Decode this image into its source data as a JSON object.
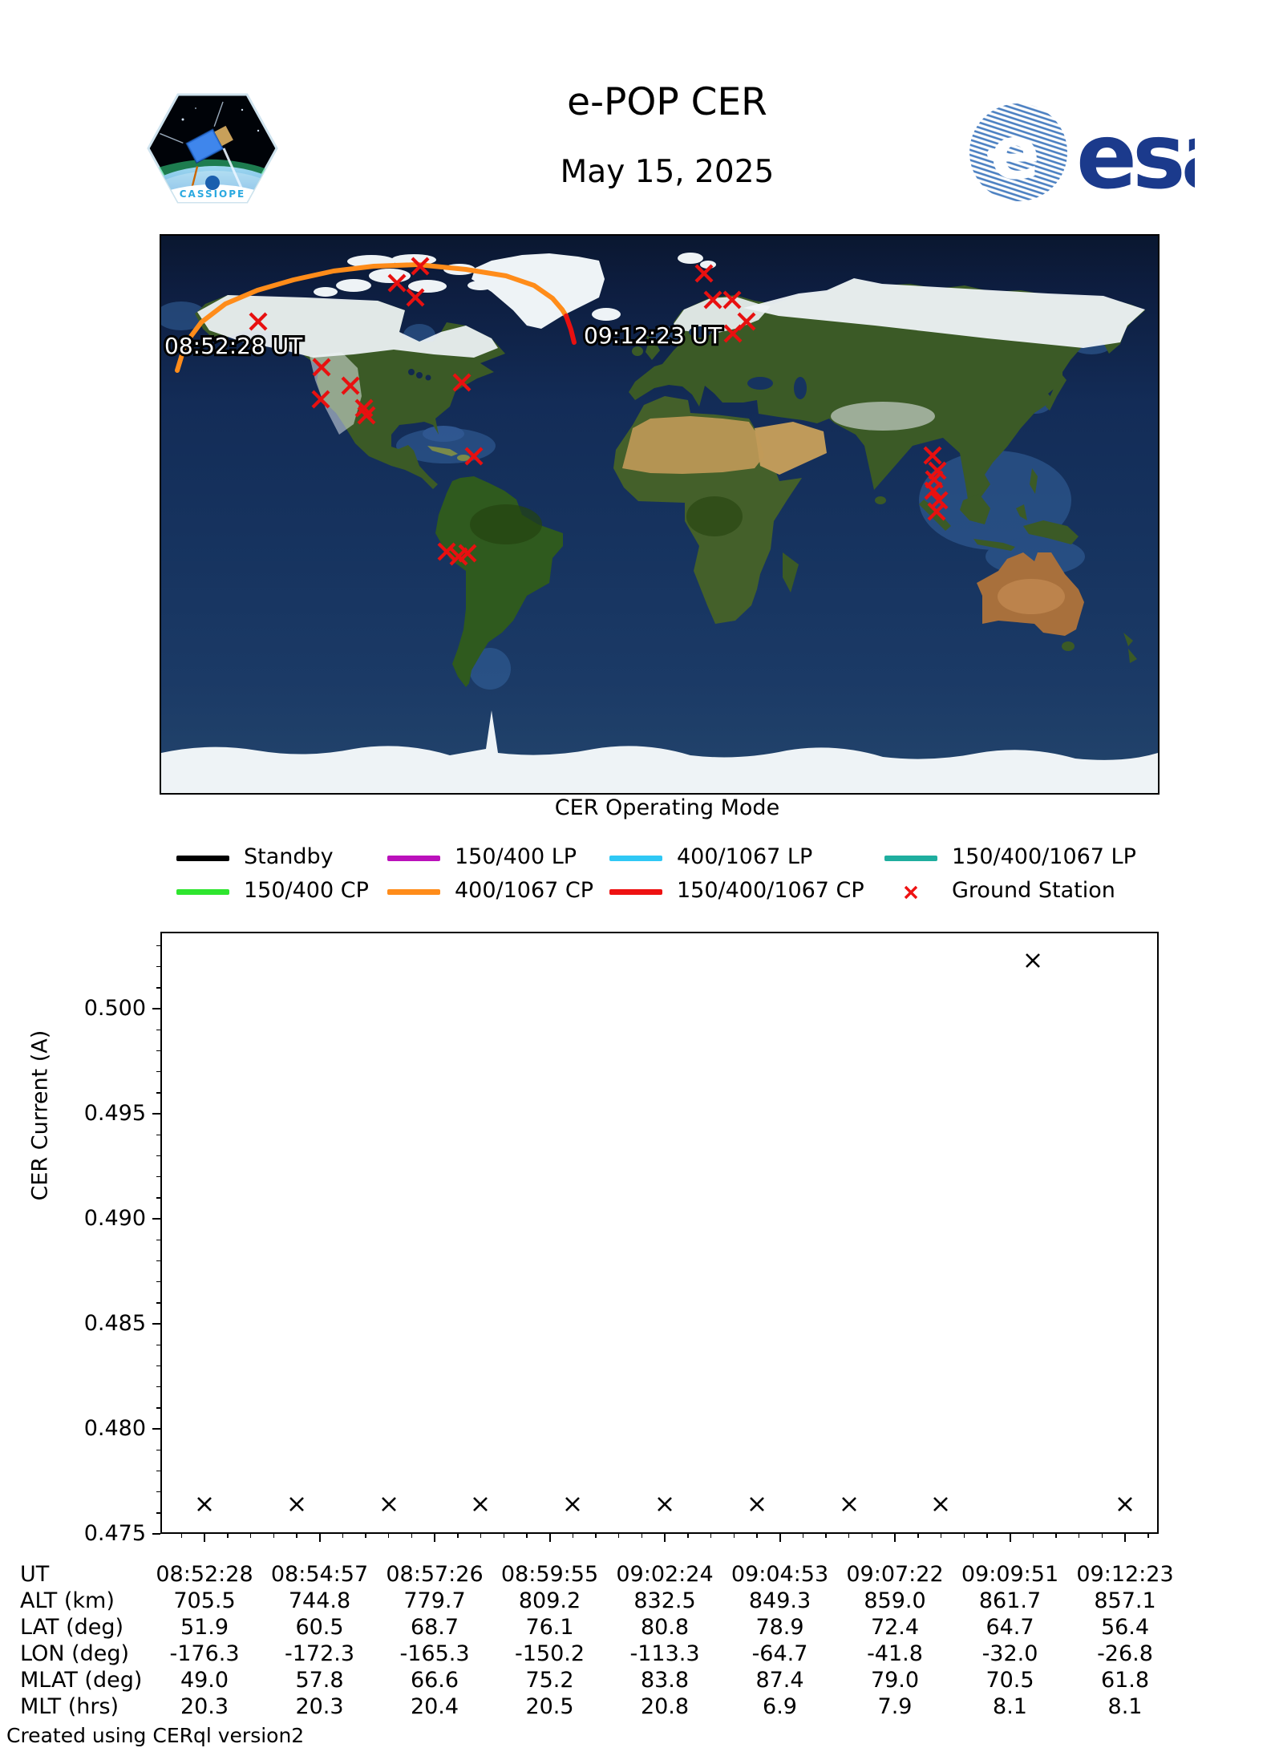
{
  "header": {
    "title": "e-POP CER",
    "date": "May 15, 2025",
    "patch_caption": "CASSIOPE",
    "esa_wordmark": "esa",
    "esa_blue": "#1b3a8c"
  },
  "map": {
    "start_label": "08:52:28 UT",
    "end_label": "09:12:23 UT",
    "caption": "CER Operating Mode",
    "track_color": "#ff8c1a",
    "track_end_color": "#e81010",
    "station_color": "#e81010",
    "track_points": [
      [
        20,
        168
      ],
      [
        30,
        135
      ],
      [
        50,
        108
      ],
      [
        80,
        85
      ],
      [
        120,
        68
      ],
      [
        165,
        55
      ],
      [
        215,
        44
      ],
      [
        265,
        38
      ],
      [
        320,
        36
      ],
      [
        380,
        42
      ],
      [
        430,
        50
      ],
      [
        465,
        62
      ],
      [
        488,
        78
      ],
      [
        500,
        92
      ],
      [
        505,
        100
      ]
    ],
    "track_end_points": [
      [
        505,
        100
      ],
      [
        511,
        117
      ],
      [
        515,
        133
      ]
    ],
    "ground_stations": [
      [
        323,
        38
      ],
      [
        294,
        59
      ],
      [
        317,
        77
      ],
      [
        121,
        107
      ],
      [
        200,
        164
      ],
      [
        236,
        187
      ],
      [
        199,
        204
      ],
      [
        253,
        215
      ],
      [
        256,
        224
      ],
      [
        375,
        183
      ],
      [
        390,
        275
      ],
      [
        356,
        394
      ],
      [
        371,
        400
      ],
      [
        382,
        396
      ],
      [
        677,
        47
      ],
      [
        688,
        80
      ],
      [
        712,
        80
      ],
      [
        730,
        107
      ],
      [
        713,
        122
      ],
      [
        962,
        274
      ],
      [
        968,
        293
      ],
      [
        964,
        304
      ],
      [
        963,
        318
      ],
      [
        970,
        330
      ],
      [
        967,
        344
      ]
    ]
  },
  "legend": {
    "items": [
      {
        "label": "Standby",
        "color": "#000000",
        "type": "line"
      },
      {
        "label": "150/400 LP",
        "color": "#bb11bb",
        "type": "line"
      },
      {
        "label": "400/1067 LP",
        "color": "#2fc8f5",
        "type": "line"
      },
      {
        "label": "150/400/1067 LP",
        "color": "#1fae9f",
        "type": "line"
      },
      {
        "label": "150/400 CP",
        "color": "#2ee52e",
        "type": "line"
      },
      {
        "label": "400/1067 CP",
        "color": "#ff8c1a",
        "type": "line"
      },
      {
        "label": "150/400/1067 CP",
        "color": "#ee1111",
        "type": "line"
      },
      {
        "label": "Ground Station",
        "color": "#ee1111",
        "type": "marker"
      }
    ]
  },
  "chart_data": {
    "type": "scatter",
    "title": "",
    "ylabel": "CER Current (A)",
    "ylim": [
      0.475,
      0.5037
    ],
    "yticks": [
      "0.475",
      "0.480",
      "0.485",
      "0.490",
      "0.495",
      "0.500"
    ],
    "ytick_minor_step": 0.001,
    "grid": false,
    "marker": "x",
    "marker_color": "#000000",
    "x_tick_labels": [
      "08:52:28",
      "08:54:57",
      "08:57:26",
      "08:59:55",
      "09:02:24",
      "09:04:53",
      "09:07:22",
      "09:09:51",
      "09:12:23"
    ],
    "points": [
      {
        "xi": 0,
        "y": 0.4764
      },
      {
        "xi": 1,
        "y": 0.4764
      },
      {
        "xi": 2,
        "y": 0.4764
      },
      {
        "xi": 3,
        "y": 0.4764
      },
      {
        "xi": 4,
        "y": 0.4764
      },
      {
        "xi": 5,
        "y": 0.4764
      },
      {
        "xi": 6,
        "y": 0.4764
      },
      {
        "xi": 7,
        "y": 0.4764
      },
      {
        "xi": 8,
        "y": 0.4764
      },
      {
        "xi": 9,
        "y": 0.5023
      },
      {
        "xi": 10,
        "y": 0.4764
      }
    ]
  },
  "table": {
    "rows": [
      {
        "label": "UT",
        "values": [
          "08:52:28",
          "08:54:57",
          "08:57:26",
          "08:59:55",
          "09:02:24",
          "09:04:53",
          "09:07:22",
          "09:09:51",
          "09:12:23"
        ]
      },
      {
        "label": "ALT (km)",
        "values": [
          "705.5",
          "744.8",
          "779.7",
          "809.2",
          "832.5",
          "849.3",
          "859.0",
          "861.7",
          "857.1"
        ]
      },
      {
        "label": "LAT (deg)",
        "values": [
          "51.9",
          "60.5",
          "68.7",
          "76.1",
          "80.8",
          "78.9",
          "72.4",
          "64.7",
          "56.4"
        ]
      },
      {
        "label": "LON (deg)",
        "values": [
          "-176.3",
          "-172.3",
          "-165.3",
          "-150.2",
          "-113.3",
          "-64.7",
          "-41.8",
          "-32.0",
          "-26.8"
        ]
      },
      {
        "label": "MLAT (deg)",
        "values": [
          "49.0",
          "57.8",
          "66.6",
          "75.2",
          "83.8",
          "87.4",
          "79.0",
          "70.5",
          "61.8"
        ]
      },
      {
        "label": "MLT (hrs)",
        "values": [
          "20.3",
          "20.3",
          "20.4",
          "20.5",
          "20.8",
          "6.9",
          "7.9",
          "8.1",
          "8.1"
        ]
      }
    ]
  },
  "footer": "Created using CERql version2"
}
